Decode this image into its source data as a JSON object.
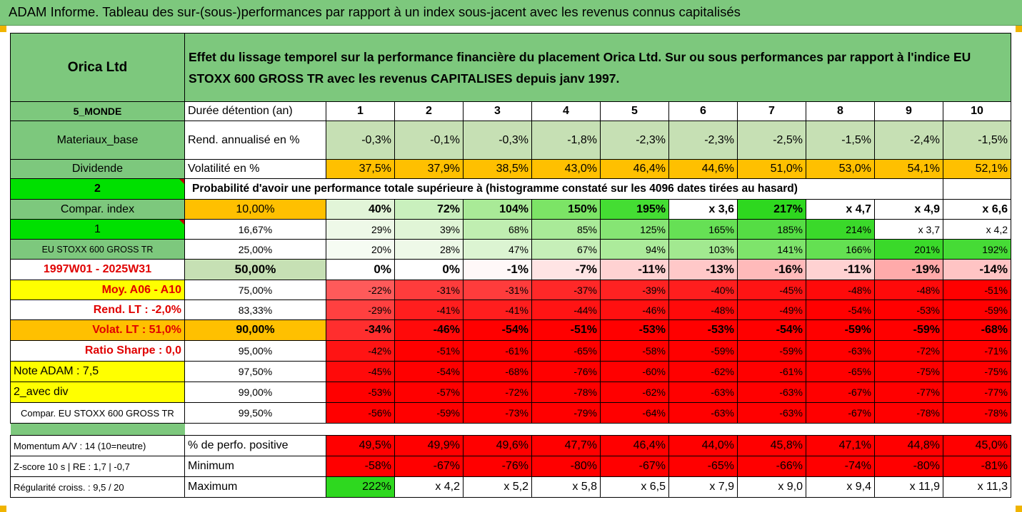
{
  "title": "ADAM Informe. Tableau des sur-(sous-)performances par rapport à un index sous-jacent avec les revenus connus capitalisés",
  "header": {
    "company": "Orica Ltd",
    "description_line1": "Effet du lissage temporel sur la performance financière du placement Orica Ltd. Sur ou sous performances par rapport à l'indice EU",
    "description_line2": "STOXX 600 GROSS TR avec les revenus CAPITALISES depuis janv 1997."
  },
  "colors": {
    "header_green": "#7dc87d",
    "light_green": "#c6e0b4",
    "bright_green": "#00e000",
    "orange": "#ffc000",
    "yellow": "#ffff00",
    "red": "#ff0000",
    "accent_red_text": "#e00000"
  },
  "rows": [
    {
      "label": "5_MONDE",
      "name": "Durée détention (an)",
      "cells": [
        "1",
        "2",
        "3",
        "4",
        "5",
        "6",
        "7",
        "8",
        "9",
        "10"
      ]
    },
    {
      "label": "Materiaux_base",
      "name": "Rend. annualisé en %",
      "cells": [
        "-0,3%",
        "-0,1%",
        "-0,3%",
        "-1,8%",
        "-2,3%",
        "-2,3%",
        "-2,5%",
        "-1,5%",
        "-2,4%",
        "-1,5%"
      ]
    },
    {
      "label": "Dividende",
      "name": "Volatilité en %",
      "cells": [
        "37,5%",
        "37,9%",
        "38,5%",
        "43,0%",
        "46,4%",
        "44,6%",
        "51,0%",
        "53,0%",
        "54,1%",
        "52,1%"
      ]
    },
    {
      "label": "2",
      "name": "Probabilité d'avoir une performance totale supérieure à (histogramme constaté sur les 4096 dates tirées au hasard)"
    },
    {
      "label": "Compar. index",
      "name": "10,00%",
      "cells": [
        "40%",
        "72%",
        "104%",
        "150%",
        "195%",
        "x 3,6",
        "217%",
        "x 4,7",
        "x 4,9",
        "x 6,6"
      ]
    },
    {
      "label": "1",
      "name": "16,67%",
      "cells": [
        "29%",
        "39%",
        "68%",
        "85%",
        "125%",
        "165%",
        "185%",
        "214%",
        "x 3,7",
        "x 4,2"
      ]
    },
    {
      "label": "EU STOXX 600 GROSS TR",
      "name": "25,00%",
      "cells": [
        "20%",
        "28%",
        "47%",
        "67%",
        "94%",
        "103%",
        "141%",
        "166%",
        "201%",
        "192%"
      ]
    },
    {
      "label": "1997W01 - 2025W31",
      "name": "50,00%",
      "cells": [
        "0%",
        "0%",
        "-1%",
        "-7%",
        "-11%",
        "-13%",
        "-16%",
        "-11%",
        "-19%",
        "-14%"
      ]
    },
    {
      "label": "Moy. A06 - A10",
      "name": "75,00%",
      "cells": [
        "-22%",
        "-31%",
        "-31%",
        "-37%",
        "-39%",
        "-40%",
        "-45%",
        "-48%",
        "-48%",
        "-51%"
      ]
    },
    {
      "label": "Rend. LT :   -2,0%",
      "name": "83,33%",
      "cells": [
        "-29%",
        "-41%",
        "-41%",
        "-44%",
        "-46%",
        "-48%",
        "-49%",
        "-54%",
        "-53%",
        "-59%"
      ]
    },
    {
      "label": "Volat. LT :   51,0%",
      "name": "90,00%",
      "cells": [
        "-34%",
        "-46%",
        "-54%",
        "-51%",
        "-53%",
        "-53%",
        "-54%",
        "-59%",
        "-59%",
        "-68%"
      ]
    },
    {
      "label": "Ratio Sharpe :   0,0",
      "name": "95,00%",
      "cells": [
        "-42%",
        "-51%",
        "-61%",
        "-65%",
        "-58%",
        "-59%",
        "-59%",
        "-63%",
        "-72%",
        "-71%"
      ]
    },
    {
      "label": "Note ADAM : 7,5",
      "name": "97,50%",
      "cells": [
        "-45%",
        "-54%",
        "-68%",
        "-76%",
        "-60%",
        "-62%",
        "-61%",
        "-65%",
        "-75%",
        "-75%"
      ]
    },
    {
      "label": "2_avec div",
      "name": "99,00%",
      "cells": [
        "-53%",
        "-57%",
        "-72%",
        "-78%",
        "-62%",
        "-63%",
        "-63%",
        "-67%",
        "-77%",
        "-77%"
      ]
    },
    {
      "label": "Compar. EU STOXX 600 GROSS TR",
      "name": "99,50%",
      "cells": [
        "-56%",
        "-59%",
        "-73%",
        "-79%",
        "-64%",
        "-63%",
        "-63%",
        "-67%",
        "-78%",
        "-78%"
      ]
    },
    {
      "label": "Momentum A/V : 14 (10=neutre)",
      "name": "% de perfo. positive",
      "cells": [
        "49,5%",
        "49,9%",
        "49,6%",
        "47,7%",
        "46,4%",
        "44,0%",
        "45,8%",
        "47,1%",
        "44,8%",
        "45,0%"
      ]
    },
    {
      "label": "Z-score 10 s  |  RE : 1,7  |  -0,7",
      "name": "Minimum",
      "cells": [
        "-58%",
        "-67%",
        "-76%",
        "-80%",
        "-67%",
        "-65%",
        "-66%",
        "-74%",
        "-80%",
        "-81%"
      ]
    },
    {
      "label": "Régularité croiss. : 9,5 / 20",
      "name": "Maximum",
      "cells": [
        "222%",
        "x 4,2",
        "x 5,2",
        "x 5,8",
        "x 6,5",
        "x 7,9",
        "x 9,0",
        "x 9,4",
        "x 11,9",
        "x 11,3"
      ]
    }
  ]
}
